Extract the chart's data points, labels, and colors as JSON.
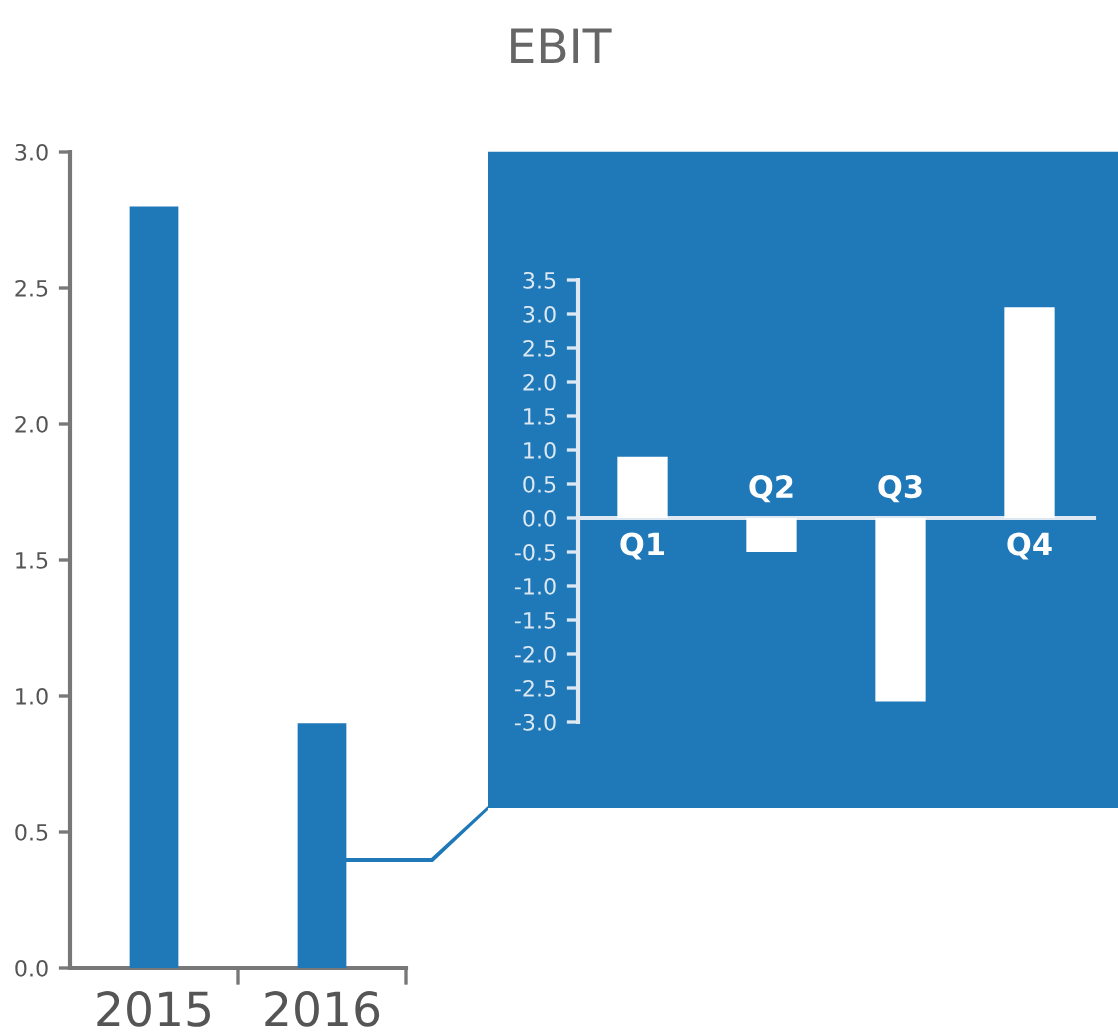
{
  "chart_data": [
    {
      "type": "bar",
      "categories": [
        "2015",
        "2016"
      ],
      "values": [
        2.8,
        0.9
      ],
      "color": "#1f78b8",
      "ylim": [
        0,
        3
      ],
      "yticks": [
        {
          "value": 0,
          "label": "0.0"
        },
        {
          "value": 0.5,
          "label": "0.5"
        },
        {
          "value": 1,
          "label": "1.0"
        },
        {
          "value": 1.5,
          "label": "1.5"
        },
        {
          "value": 2,
          "label": "2.0"
        },
        {
          "value": 2.5,
          "label": "2.5"
        },
        {
          "value": 3,
          "label": "3.0"
        }
      ]
    },
    {
      "type": "bar",
      "title": "EBIT",
      "categories": [
        "Q1",
        "Q2",
        "Q3",
        "Q4"
      ],
      "values": [
        0.9,
        -0.5,
        -2.7,
        3.1
      ],
      "color": "#ffffff",
      "ylim": [
        -3,
        3.5
      ],
      "yticks": [
        {
          "value": -3,
          "label": "-3.0"
        },
        {
          "value": -2.5,
          "label": "-2.5"
        },
        {
          "value": -2,
          "label": "-2.0"
        },
        {
          "value": -1.5,
          "label": "-1.5"
        },
        {
          "value": -1,
          "label": "-1.0"
        },
        {
          "value": -0.5,
          "label": "-0.5"
        },
        {
          "value": 0,
          "label": "0.0"
        },
        {
          "value": 0.5,
          "label": "0.5"
        },
        {
          "value": 1,
          "label": "1.0"
        },
        {
          "value": 1.5,
          "label": "1.5"
        },
        {
          "value": 2,
          "label": "2.0"
        },
        {
          "value": 2.5,
          "label": "2.5"
        },
        {
          "value": 3,
          "label": "3.0"
        },
        {
          "value": 3.5,
          "label": "3.5"
        }
      ]
    }
  ]
}
